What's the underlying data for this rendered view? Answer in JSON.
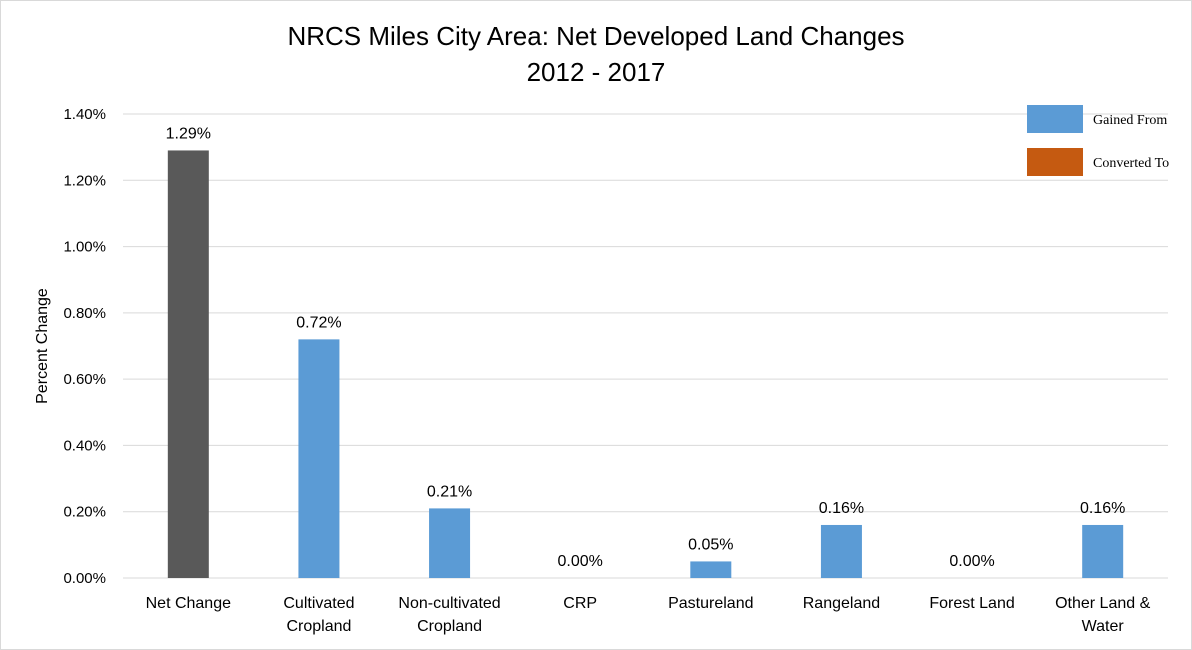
{
  "chart_data": {
    "type": "bar",
    "title": "NRCS Miles City Area: Net Developed Land Changes",
    "subtitle": "2012 - 2017",
    "xlabel": "",
    "ylabel": "Percent Change",
    "ylim": [
      0,
      1.4
    ],
    "yticks": [
      "0.00%",
      "0.20%",
      "0.40%",
      "0.60%",
      "0.80%",
      "1.00%",
      "1.20%",
      "1.40%"
    ],
    "grid": true,
    "legend_position": "top-right",
    "categories": [
      [
        "Net Change"
      ],
      [
        "Cultivated",
        "Cropland"
      ],
      [
        "Non-cultivated",
        "Cropland"
      ],
      [
        "CRP"
      ],
      [
        "Pastureland"
      ],
      [
        "Rangeland"
      ],
      [
        "Forest Land"
      ],
      [
        "Other Land &",
        "Water"
      ]
    ],
    "values": [
      1.29,
      0.72,
      0.21,
      0.0,
      0.05,
      0.16,
      0.0,
      0.16
    ],
    "data_labels": [
      "1.29%",
      "0.72%",
      "0.21%",
      "0.00%",
      "0.05%",
      "0.16%",
      "0.00%",
      "0.16%"
    ],
    "bar_roles": [
      "net",
      "gained",
      "gained",
      "gained",
      "gained",
      "gained",
      "gained",
      "gained"
    ],
    "legend": [
      {
        "name": "Gained From",
        "color": "#5b9bd5"
      },
      {
        "name": "Converted To",
        "color": "#c55a11"
      }
    ],
    "colors": {
      "net": "#595959",
      "gained": "#5b9bd5",
      "converted": "#c55a11",
      "grid": "#d9d9d9"
    }
  }
}
